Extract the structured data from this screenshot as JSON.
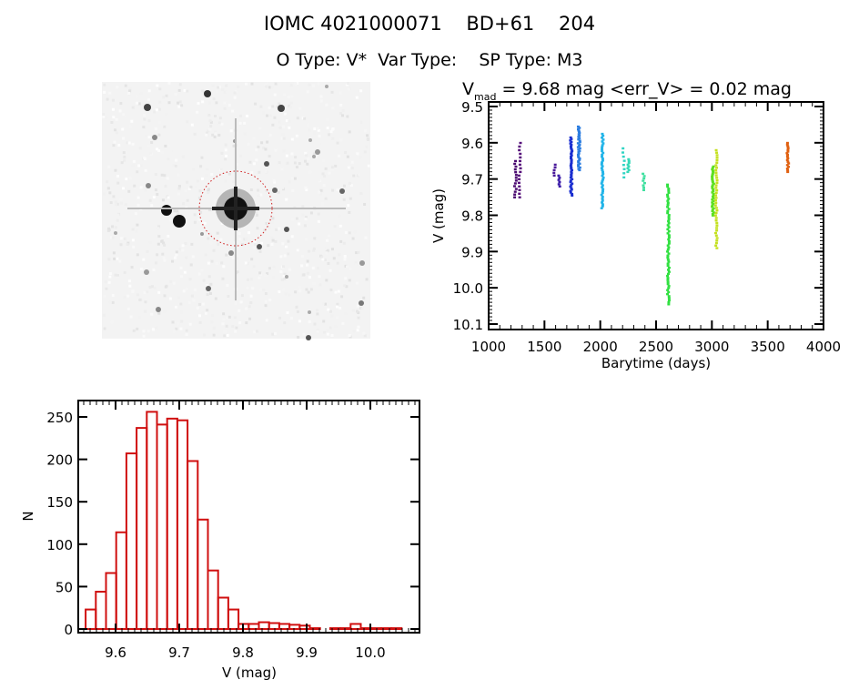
{
  "header": {
    "title": "IOMC 4021000071    BD+61    204",
    "subtitle": "O Type: V*  Var Type:    SP Type: M3"
  },
  "finding_chart": {
    "image": "DSS grayscale field image with target star in red dashed circle"
  },
  "chart_data": [
    {
      "type": "scatter",
      "title_main": "V",
      "title_sub": "mad",
      "title_rest": " = 9.68 mag <err_V> = 0.02 mag",
      "xlabel": "Barytime (days)",
      "ylabel": "V (mag)",
      "xlim": [
        1000,
        4000
      ],
      "ylim": [
        10.1,
        9.5
      ],
      "xticks": [
        "1000",
        "1500",
        "2000",
        "2500",
        "3000",
        "3500",
        "4000"
      ],
      "yticks": [
        "9.5",
        "9.6",
        "9.7",
        "9.8",
        "9.9",
        "10.0",
        "10.1"
      ],
      "clusters": [
        {
          "x": 1240,
          "ymin": 9.65,
          "ymax": 9.75,
          "n": 14,
          "color": "#4a0a70"
        },
        {
          "x": 1280,
          "ymin": 9.6,
          "ymax": 9.75,
          "n": 16,
          "color": "#56107a"
        },
        {
          "x": 1590,
          "ymin": 9.66,
          "ymax": 9.69,
          "n": 5,
          "color": "#4a1a9a"
        },
        {
          "x": 1630,
          "ymin": 9.69,
          "ymax": 9.72,
          "n": 6,
          "color": "#3a1aa8"
        },
        {
          "x": 1740,
          "ymin": 9.585,
          "ymax": 9.745,
          "n": 40,
          "color": "#1a2ed0"
        },
        {
          "x": 1810,
          "ymin": 9.555,
          "ymax": 9.675,
          "n": 35,
          "color": "#2a7ce0"
        },
        {
          "x": 2020,
          "ymin": 9.575,
          "ymax": 9.78,
          "n": 40,
          "color": "#22b4e8"
        },
        {
          "x": 2210,
          "ymin": 9.615,
          "ymax": 9.695,
          "n": 8,
          "color": "#30d4c4"
        },
        {
          "x": 2250,
          "ymin": 9.645,
          "ymax": 9.68,
          "n": 8,
          "color": "#36d8b8"
        },
        {
          "x": 2390,
          "ymin": 9.685,
          "ymax": 9.73,
          "n": 8,
          "color": "#40e0a0"
        },
        {
          "x": 2610,
          "ymin": 9.715,
          "ymax": 10.045,
          "n": 60,
          "color": "#30e040"
        },
        {
          "x": 3010,
          "ymin": 9.665,
          "ymax": 9.8,
          "n": 35,
          "color": "#5ce020"
        },
        {
          "x": 3040,
          "ymin": 9.62,
          "ymax": 9.89,
          "n": 40,
          "color": "#c4e020"
        },
        {
          "x": 3680,
          "ymin": 9.6,
          "ymax": 9.68,
          "n": 18,
          "color": "#e06010"
        }
      ]
    },
    {
      "type": "bar",
      "xlabel": "V (mag)",
      "ylabel": "N",
      "xlim": [
        9.541,
        10.077
      ],
      "ylim": [
        0,
        270
      ],
      "bin_start": 9.553,
      "bin_width": 0.016,
      "values": [
        23,
        44,
        66,
        114,
        207,
        237,
        256,
        241,
        248,
        246,
        198,
        129,
        69,
        37,
        23,
        6,
        6,
        8,
        7,
        6,
        5,
        4,
        1,
        0,
        1,
        1,
        6,
        1,
        1,
        1,
        1
      ],
      "xticks": [
        "9.6",
        "9.7",
        "9.8",
        "9.9",
        "10.0"
      ],
      "yticks": [
        "0",
        "50",
        "100",
        "150",
        "200",
        "250"
      ],
      "color": "#d01010"
    }
  ]
}
